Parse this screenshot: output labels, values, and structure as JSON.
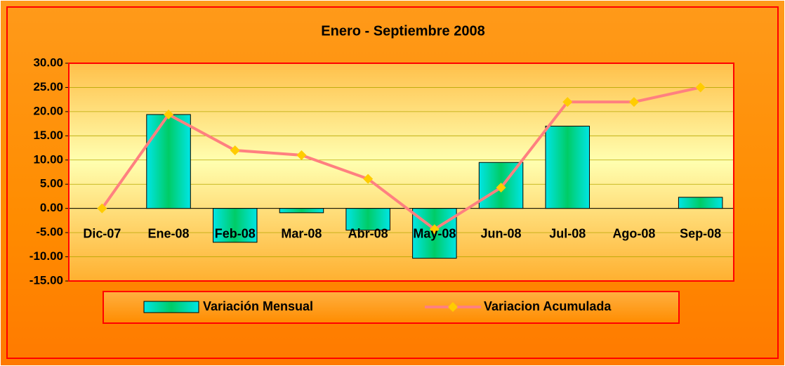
{
  "chart_data": {
    "type": "bar-line",
    "title": "Enero - Septiembre 2008",
    "categories": [
      "Dic-07",
      "Ene-08",
      "Feb-08",
      "Mar-08",
      "Abr-08",
      "May-08",
      "Jun-08",
      "Jul-08",
      "Ago-08",
      "Sep-08"
    ],
    "series": [
      {
        "name": "Variación Mensual",
        "type": "bar",
        "color": "#00e5e5",
        "values": [
          0,
          19.4,
          -7.0,
          -0.9,
          -4.5,
          -10.3,
          9.5,
          17.0,
          0,
          2.3
        ]
      },
      {
        "name": "Variacion Acumulada",
        "type": "line",
        "color": "#ff8080",
        "marker_color": "#ffcc00",
        "values": [
          0,
          19.4,
          12.0,
          11.0,
          6.1,
          -4.3,
          4.3,
          22.0,
          22.0,
          25.0
        ]
      }
    ],
    "ylim": [
      -15,
      30
    ],
    "yticks": [
      {
        "value": -15,
        "label": "-15.00"
      },
      {
        "value": -10,
        "label": "-10.00"
      },
      {
        "value": -5,
        "label": "-5.00"
      },
      {
        "value": 0,
        "label": "0.00"
      },
      {
        "value": 5,
        "label": "5.00"
      },
      {
        "value": 10,
        "label": "10.00"
      },
      {
        "value": 15,
        "label": "15.00"
      },
      {
        "value": 20,
        "label": "20.00"
      },
      {
        "value": 25,
        "label": "25.00"
      },
      {
        "value": 30,
        "label": "30.00"
      }
    ],
    "grid": true,
    "legend": "bottom"
  }
}
